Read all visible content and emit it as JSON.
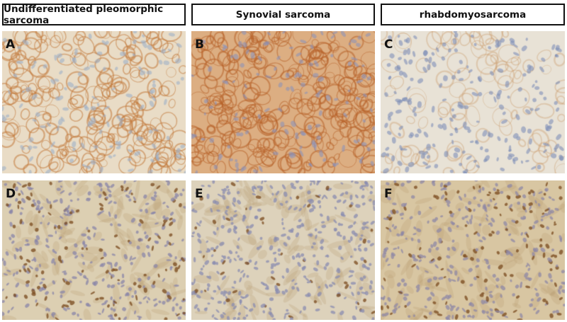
{
  "columns": [
    {
      "title": "Undifferentiated pleomorphic sarcoma"
    },
    {
      "title": "Synovial sarcoma"
    },
    {
      "title": "rhabdomyosarcoma"
    }
  ],
  "panels": [
    {
      "label": "A",
      "bg": "#e9dcc6",
      "stain": "#c27a3c",
      "nucleus": "#9fb0c8",
      "style": "membrane"
    },
    {
      "label": "B",
      "bg": "#dcae82",
      "stain": "#b8622a",
      "nucleus": "#8e93b8",
      "style": "membrane-dense"
    },
    {
      "label": "C",
      "bg": "#e8e2d6",
      "stain": "#c89460",
      "nucleus": "#7f8fb8",
      "style": "sparse"
    },
    {
      "label": "D",
      "bg": "#dccfb2",
      "stain": "#7a4a1e",
      "nucleus": "#8a86a8",
      "style": "nuclear"
    },
    {
      "label": "E",
      "bg": "#ddd2bb",
      "stain": "#7a4a1e",
      "nucleus": "#8a8cb0",
      "style": "nuclear-low"
    },
    {
      "label": "F",
      "bg": "#d8c6a2",
      "stain": "#7a4a1e",
      "nucleus": "#8f88a6",
      "style": "nuclear"
    }
  ]
}
